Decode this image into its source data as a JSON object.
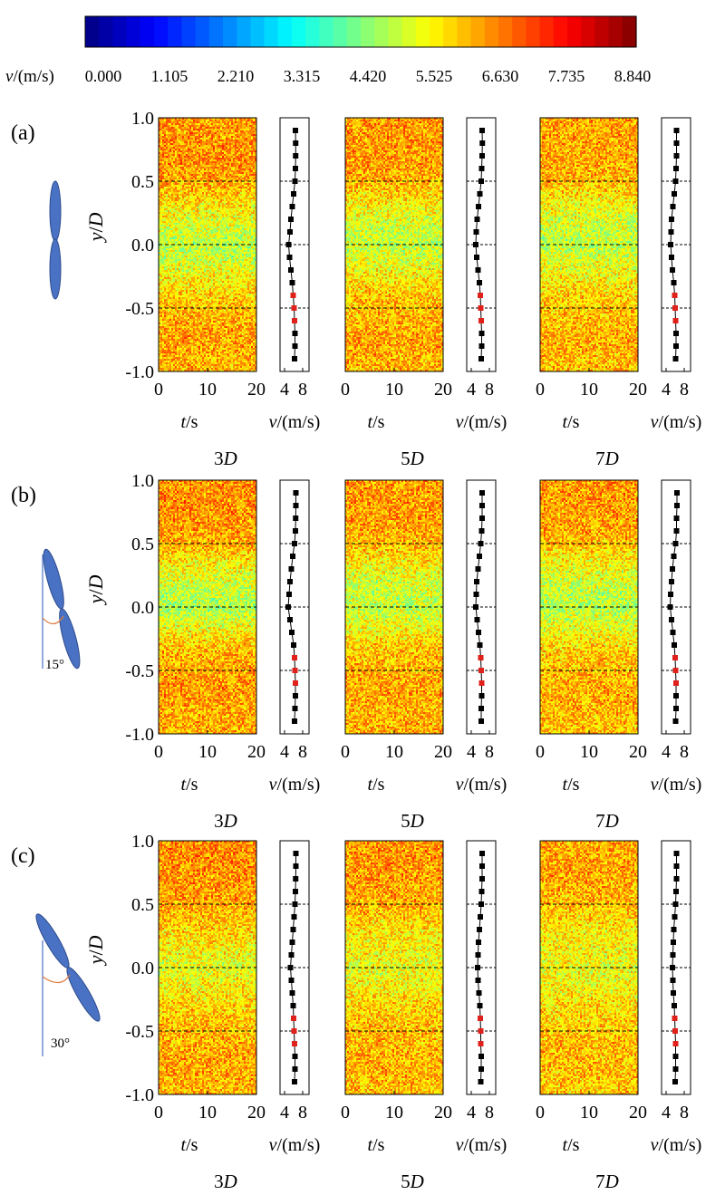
{
  "colorbar": {
    "label": "v/(m/s)",
    "min": 0,
    "max": 8.84,
    "ticks": [
      "0.000",
      "1.105",
      "2.210",
      "3.315",
      "4.420",
      "5.525",
      "6.630",
      "7.735",
      "8.840"
    ]
  },
  "chart_data": {
    "type": "heatmap",
    "colormap": "jet",
    "y_axis": {
      "label": "y/D",
      "ylim": [
        -1.0,
        1.0
      ],
      "ticks": [
        "1.0",
        "0.5",
        "0.0",
        "-0.5",
        "-1.0"
      ],
      "dashed_lines": [
        0.5,
        0.0,
        -0.5
      ]
    },
    "time_axis": {
      "label": "t/s",
      "xlim": [
        0,
        20
      ],
      "ticks": [
        "0",
        "10",
        "20"
      ]
    },
    "profile_axis": {
      "label": "v/(m/s)",
      "xlim": [
        3,
        9.4
      ],
      "ticks": [
        "4",
        "8"
      ]
    },
    "profile_y": [
      0.9,
      0.8,
      0.7,
      0.6,
      0.5,
      0.4,
      0.3,
      0.2,
      0.1,
      0.0,
      -0.1,
      -0.2,
      -0.3,
      -0.4,
      -0.5,
      -0.6,
      -0.7,
      -0.8,
      -0.9
    ],
    "highlighted_y": [
      -0.4,
      -0.5,
      -0.6
    ],
    "rows": [
      {
        "label": "(a)",
        "turbine_angle_label": "",
        "panels": [
          {
            "label": "3D",
            "profile_v": [
              6.4,
              6.45,
              6.45,
              6.4,
              6.3,
              6.0,
              5.7,
              5.4,
              5.2,
              4.9,
              5.1,
              5.4,
              5.7,
              5.9,
              6.1,
              6.2,
              6.3,
              6.3,
              6.2
            ]
          },
          {
            "label": "5D",
            "profile_v": [
              6.4,
              6.45,
              6.4,
              6.3,
              6.2,
              5.9,
              5.6,
              5.3,
              5.1,
              5.0,
              5.2,
              5.5,
              5.8,
              6.0,
              6.1,
              6.2,
              6.3,
              6.3,
              6.2
            ]
          },
          {
            "label": "7D",
            "profile_v": [
              6.3,
              6.3,
              6.3,
              6.2,
              6.1,
              5.8,
              5.5,
              5.2,
              5.1,
              5.0,
              5.2,
              5.4,
              5.7,
              5.9,
              6.0,
              6.1,
              6.2,
              6.2,
              6.1
            ]
          }
        ]
      },
      {
        "label": "(b)",
        "turbine_angle_label": "15°",
        "panels": [
          {
            "label": "3D",
            "profile_v": [
              6.5,
              6.5,
              6.45,
              6.4,
              6.2,
              5.8,
              5.5,
              5.2,
              5.0,
              4.8,
              5.2,
              5.6,
              6.0,
              6.2,
              6.3,
              6.4,
              6.4,
              6.3,
              6.2
            ]
          },
          {
            "label": "5D",
            "profile_v": [
              6.4,
              6.4,
              6.4,
              6.3,
              6.1,
              5.8,
              5.5,
              5.2,
              5.1,
              5.0,
              5.3,
              5.6,
              5.9,
              6.1,
              6.2,
              6.3,
              6.3,
              6.2,
              6.2
            ]
          },
          {
            "label": "7D",
            "profile_v": [
              6.4,
              6.4,
              6.3,
              6.3,
              6.1,
              5.7,
              5.4,
              5.2,
              5.0,
              4.9,
              5.2,
              5.5,
              5.8,
              6.0,
              6.1,
              6.2,
              6.2,
              6.2,
              6.1
            ]
          }
        ]
      },
      {
        "label": "(c)",
        "turbine_angle_label": "30°",
        "panels": [
          {
            "label": "3D",
            "profile_v": [
              6.5,
              6.5,
              6.45,
              6.4,
              6.3,
              6.1,
              5.9,
              5.7,
              5.5,
              5.3,
              5.5,
              5.7,
              5.9,
              6.0,
              6.1,
              6.2,
              6.3,
              6.3,
              6.2
            ]
          },
          {
            "label": "5D",
            "profile_v": [
              6.4,
              6.4,
              6.4,
              6.3,
              6.2,
              6.0,
              5.8,
              5.6,
              5.5,
              5.4,
              5.5,
              5.7,
              5.9,
              6.0,
              6.1,
              6.1,
              6.2,
              6.2,
              6.1
            ]
          },
          {
            "label": "7D",
            "profile_v": [
              6.3,
              6.3,
              6.3,
              6.2,
              6.1,
              5.9,
              5.7,
              5.6,
              5.5,
              5.4,
              5.5,
              5.6,
              5.8,
              5.9,
              6.0,
              6.1,
              6.1,
              6.1,
              6.0
            ]
          }
        ]
      }
    ]
  }
}
